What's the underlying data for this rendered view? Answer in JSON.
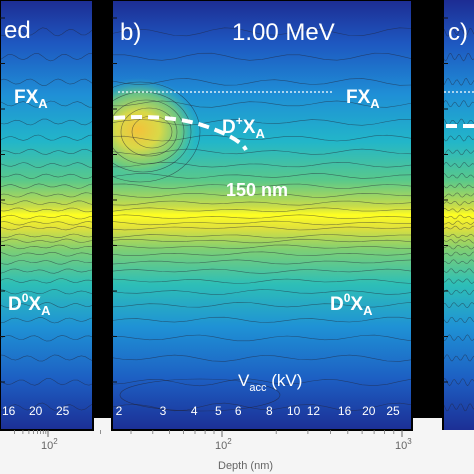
{
  "chart_data": [
    {
      "type": "heatmap",
      "panel_label": "",
      "title": "ed",
      "annotations": [
        "FX",
        "D0X"
      ],
      "tick_labels": [
        "16",
        "20",
        "25"
      ],
      "x_axis_ticks": [
        "10"
      ],
      "x_axis_tick_exp": [
        "2"
      ]
    },
    {
      "type": "heatmap",
      "panel_label": "b)",
      "title": "1.00 MeV",
      "annotations": {
        "fx": {
          "main": "FX",
          "sub": "A"
        },
        "dplus": {
          "main": "D",
          "sup": "+",
          "rest": "X",
          "sub": "A"
        },
        "depth": "150 nm",
        "d0": {
          "main": "D",
          "sup": "0",
          "rest": "X",
          "sub": "A"
        },
        "vacc": {
          "main": "V",
          "sub": "acc",
          "rest": " (kV)"
        }
      },
      "vacc_tick_labels": [
        "2",
        "3",
        "4",
        "5",
        "6",
        "8",
        "10",
        "12",
        "16",
        "20",
        "25"
      ],
      "x_axis_ticks": [
        {
          "base": "10",
          "exp": "2"
        },
        {
          "base": "10",
          "exp": "3"
        }
      ],
      "xlabel": "Depth (nm)",
      "xscale": "log",
      "colormap": [
        "#1a2a8a",
        "#1f5fc2",
        "#1ea3d8",
        "#2ec4a6",
        "#8ed36a",
        "#e6e23c",
        "#ffff20"
      ]
    },
    {
      "type": "heatmap",
      "panel_label": "c)"
    }
  ]
}
